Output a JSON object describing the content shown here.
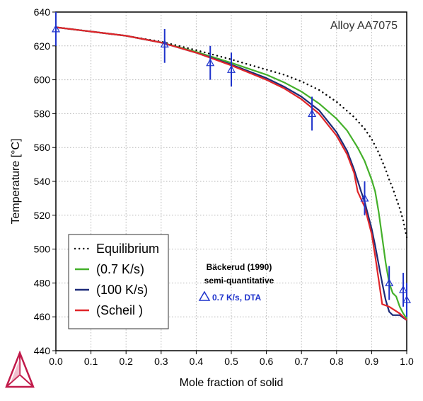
{
  "chart_data": {
    "type": "line",
    "xlabel": "Mole fraction of solid",
    "ylabel": "Temperature [°C]",
    "xlim": [
      0,
      1
    ],
    "ylim": [
      440,
      640
    ],
    "xticks": [
      0.0,
      0.1,
      0.2,
      0.3,
      0.4,
      0.5,
      0.6,
      0.7,
      0.8,
      0.9,
      1.0
    ],
    "xtick_labels": [
      "0.0",
      "0.1",
      "0.2",
      "0.3",
      "0.4",
      "0.5",
      "0.6",
      "0.7",
      "0.8",
      "0.9",
      "1.0"
    ],
    "yticks": [
      440,
      460,
      480,
      500,
      520,
      540,
      560,
      580,
      600,
      620,
      640
    ],
    "ytick_labels": [
      "440",
      "460",
      "480",
      "500",
      "520",
      "540",
      "560",
      "580",
      "600",
      "620",
      "640"
    ],
    "grid": true,
    "annotation": "Alloy AA7075",
    "legend_placement": "bottom-left",
    "series": [
      {
        "name": "Equilibrium",
        "color": "#000000",
        "style": "dotted",
        "x": [
          0.0,
          0.1,
          0.2,
          0.3,
          0.4,
          0.5,
          0.6,
          0.65,
          0.7,
          0.75,
          0.8,
          0.85,
          0.88,
          0.9,
          0.92,
          0.94,
          0.95,
          0.96,
          0.97,
          0.98,
          0.99,
          1.0
        ],
        "y": [
          631,
          628.5,
          626,
          622.5,
          617.5,
          612,
          606,
          603,
          599,
          594,
          587,
          578,
          571,
          565,
          557,
          547,
          541,
          536,
          530,
          524,
          517,
          507
        ]
      },
      {
        "name": "(0.7 K/s)",
        "color": "#44b02a",
        "style": "solid",
        "x": [
          0.0,
          0.1,
          0.2,
          0.3,
          0.4,
          0.5,
          0.6,
          0.65,
          0.7,
          0.75,
          0.8,
          0.83,
          0.86,
          0.88,
          0.9,
          0.91,
          0.92,
          0.93,
          0.94,
          0.95,
          0.96,
          0.97,
          0.98,
          0.99,
          1.0
        ],
        "y": [
          631,
          628.5,
          626,
          622,
          616.5,
          610,
          603,
          598.5,
          593,
          586,
          577,
          570,
          560,
          552,
          541,
          534,
          522,
          507,
          492,
          480,
          474,
          472,
          466,
          462,
          459
        ]
      },
      {
        "name": "(100 K/s)",
        "color": "#1c2a78",
        "style": "solid",
        "x": [
          0.0,
          0.1,
          0.2,
          0.3,
          0.4,
          0.5,
          0.6,
          0.65,
          0.7,
          0.75,
          0.8,
          0.83,
          0.85,
          0.87,
          0.88,
          0.9,
          0.91,
          0.92,
          0.93,
          0.94,
          0.95,
          0.96,
          0.98,
          1.0
        ],
        "y": [
          631,
          628.5,
          626,
          622,
          616,
          609,
          601,
          596,
          590,
          582,
          569,
          558,
          547,
          534,
          528,
          512,
          502,
          491,
          480,
          470,
          463,
          461,
          461,
          458
        ]
      },
      {
        "name": "(Scheil )",
        "color": "#e0262a",
        "style": "solid",
        "x": [
          0.0,
          0.1,
          0.2,
          0.3,
          0.4,
          0.5,
          0.6,
          0.65,
          0.7,
          0.75,
          0.8,
          0.83,
          0.85,
          0.86,
          0.88,
          0.9,
          0.91,
          0.92,
          0.93,
          0.95,
          0.98,
          1.0
        ],
        "y": [
          631,
          628.5,
          626,
          622,
          616,
          608.5,
          600,
          595,
          588.5,
          580,
          567,
          556,
          545,
          534,
          525,
          509,
          496,
          482,
          467.5,
          466,
          462,
          458
        ]
      }
    ],
    "experimental": {
      "source_label": "Bäckerud (1990)",
      "quality_label": "semi-quantitative",
      "marker_label": "0.7 K/s, DTA",
      "color": "#1f33cc",
      "points": [
        {
          "x": 0.0,
          "y": 630,
          "y_low": 620,
          "y_high": 640
        },
        {
          "x": 0.31,
          "y": 621,
          "y_low": 610,
          "y_high": 630
        },
        {
          "x": 0.44,
          "y": 610,
          "y_low": 600,
          "y_high": 620
        },
        {
          "x": 0.5,
          "y": 606,
          "y_low": 596,
          "y_high": 616
        },
        {
          "x": 0.73,
          "y": 580,
          "y_low": 570,
          "y_high": 590
        },
        {
          "x": 0.88,
          "y": 530,
          "y_low": 520,
          "y_high": 540
        },
        {
          "x": 0.95,
          "y": 480,
          "y_low": 470,
          "y_high": 490
        },
        {
          "x": 0.99,
          "y": 476,
          "y_low": 466,
          "y_high": 486
        },
        {
          "x": 1.0,
          "y": 470,
          "y_low": 460,
          "y_high": 480
        }
      ]
    }
  }
}
